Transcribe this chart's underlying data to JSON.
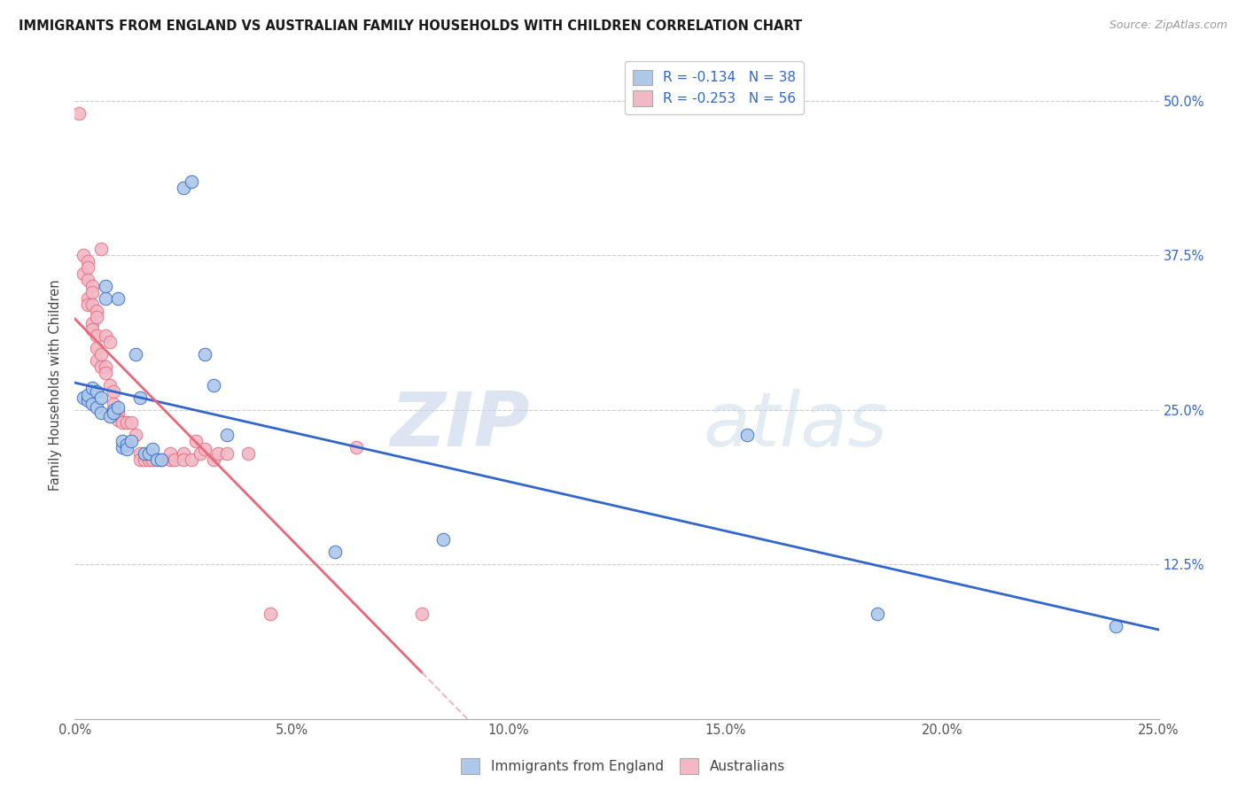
{
  "title": "IMMIGRANTS FROM ENGLAND VS AUSTRALIAN FAMILY HOUSEHOLDS WITH CHILDREN CORRELATION CHART",
  "source": "Source: ZipAtlas.com",
  "ylabel": "Family Households with Children",
  "xmin": 0.0,
  "xmax": 0.25,
  "ymin": 0.0,
  "ymax": 0.54,
  "watermark_part1": "ZIP",
  "watermark_part2": "atlas",
  "legend_R1": "-0.134",
  "legend_N1": "38",
  "legend_R2": "-0.253",
  "legend_N2": "56",
  "legend_label1": "Immigrants from England",
  "legend_label2": "Australians",
  "color_blue": "#adc8e8",
  "color_pink": "#f2b8c6",
  "line_blue": "#3366cc",
  "line_pink": "#e8687a",
  "line_pink_dash": "#e8a0aa",
  "blue_points": [
    [
      0.002,
      0.26
    ],
    [
      0.003,
      0.258
    ],
    [
      0.003,
      0.262
    ],
    [
      0.004,
      0.268
    ],
    [
      0.004,
      0.255
    ],
    [
      0.005,
      0.252
    ],
    [
      0.005,
      0.265
    ],
    [
      0.006,
      0.26
    ],
    [
      0.006,
      0.248
    ],
    [
      0.007,
      0.35
    ],
    [
      0.007,
      0.34
    ],
    [
      0.008,
      0.245
    ],
    [
      0.009,
      0.25
    ],
    [
      0.009,
      0.248
    ],
    [
      0.01,
      0.252
    ],
    [
      0.01,
      0.34
    ],
    [
      0.011,
      0.22
    ],
    [
      0.011,
      0.225
    ],
    [
      0.012,
      0.222
    ],
    [
      0.012,
      0.218
    ],
    [
      0.013,
      0.225
    ],
    [
      0.014,
      0.295
    ],
    [
      0.015,
      0.26
    ],
    [
      0.016,
      0.215
    ],
    [
      0.017,
      0.215
    ],
    [
      0.018,
      0.218
    ],
    [
      0.019,
      0.21
    ],
    [
      0.02,
      0.21
    ],
    [
      0.025,
      0.43
    ],
    [
      0.027,
      0.435
    ],
    [
      0.03,
      0.295
    ],
    [
      0.032,
      0.27
    ],
    [
      0.035,
      0.23
    ],
    [
      0.06,
      0.135
    ],
    [
      0.085,
      0.145
    ],
    [
      0.155,
      0.23
    ],
    [
      0.185,
      0.085
    ],
    [
      0.24,
      0.075
    ]
  ],
  "pink_points": [
    [
      0.001,
      0.49
    ],
    [
      0.002,
      0.375
    ],
    [
      0.002,
      0.36
    ],
    [
      0.003,
      0.37
    ],
    [
      0.003,
      0.365
    ],
    [
      0.003,
      0.355
    ],
    [
      0.003,
      0.34
    ],
    [
      0.003,
      0.335
    ],
    [
      0.004,
      0.35
    ],
    [
      0.004,
      0.345
    ],
    [
      0.004,
      0.335
    ],
    [
      0.004,
      0.32
    ],
    [
      0.004,
      0.315
    ],
    [
      0.005,
      0.33
    ],
    [
      0.005,
      0.325
    ],
    [
      0.005,
      0.31
    ],
    [
      0.005,
      0.3
    ],
    [
      0.005,
      0.29
    ],
    [
      0.006,
      0.38
    ],
    [
      0.006,
      0.295
    ],
    [
      0.006,
      0.285
    ],
    [
      0.007,
      0.31
    ],
    [
      0.007,
      0.285
    ],
    [
      0.007,
      0.28
    ],
    [
      0.008,
      0.305
    ],
    [
      0.008,
      0.27
    ],
    [
      0.009,
      0.265
    ],
    [
      0.009,
      0.255
    ],
    [
      0.01,
      0.248
    ],
    [
      0.01,
      0.242
    ],
    [
      0.011,
      0.24
    ],
    [
      0.012,
      0.24
    ],
    [
      0.013,
      0.24
    ],
    [
      0.014,
      0.23
    ],
    [
      0.015,
      0.215
    ],
    [
      0.015,
      0.21
    ],
    [
      0.016,
      0.21
    ],
    [
      0.017,
      0.21
    ],
    [
      0.018,
      0.21
    ],
    [
      0.02,
      0.21
    ],
    [
      0.022,
      0.21
    ],
    [
      0.022,
      0.215
    ],
    [
      0.023,
      0.21
    ],
    [
      0.025,
      0.215
    ],
    [
      0.025,
      0.21
    ],
    [
      0.027,
      0.21
    ],
    [
      0.028,
      0.225
    ],
    [
      0.029,
      0.215
    ],
    [
      0.03,
      0.218
    ],
    [
      0.032,
      0.21
    ],
    [
      0.033,
      0.215
    ],
    [
      0.035,
      0.215
    ],
    [
      0.04,
      0.215
    ],
    [
      0.045,
      0.085
    ],
    [
      0.065,
      0.22
    ],
    [
      0.08,
      0.085
    ]
  ]
}
